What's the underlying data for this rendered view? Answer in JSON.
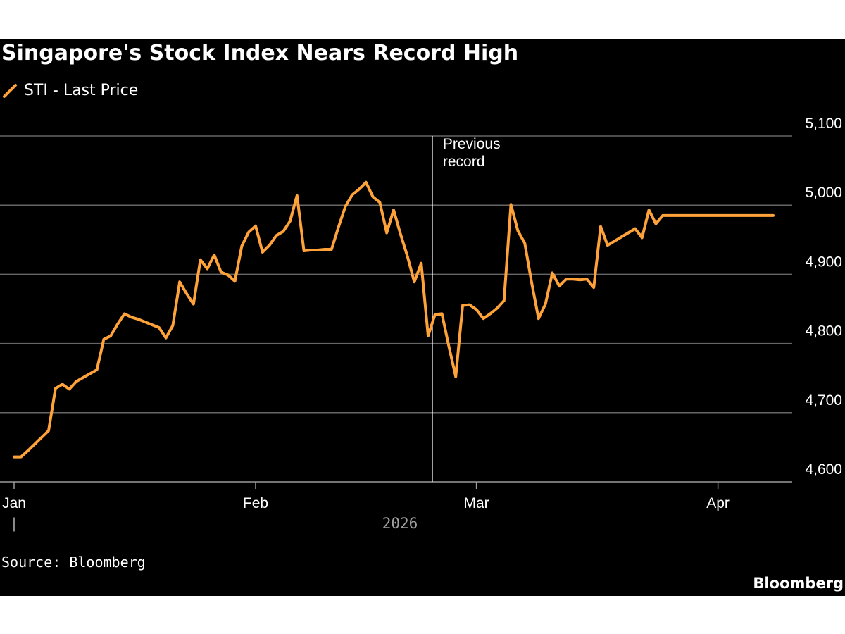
{
  "colors": {
    "background": "#000000",
    "series": "#ffa23a",
    "grid": "#666666",
    "text": "#ffffff",
    "muted": "#a0a0a0"
  },
  "source": "Source: Bloomberg",
  "brand": "Bloomberg",
  "chart_data": {
    "type": "line",
    "title": "Singapore's Stock Index Nears Record High",
    "legend": [
      "STI - Last Price"
    ],
    "legend_placement": "top-left",
    "xlabel": "2026",
    "ylabel": "",
    "y_axis_side": "right",
    "ylim": [
      4600,
      5100
    ],
    "y_ticks": [
      4600,
      4700,
      4800,
      4900,
      5000,
      5100
    ],
    "y_tick_labels": [
      "4,600",
      "4,700",
      "4,800",
      "4,900",
      "5,000",
      "5,100"
    ],
    "x_range_days": [
      0,
      112
    ],
    "x_ticks": [
      {
        "day": 0,
        "label": "Jan"
      },
      {
        "day": 35,
        "label": "Feb"
      },
      {
        "day": 67,
        "label": "Mar"
      },
      {
        "day": 102,
        "label": "Apr"
      }
    ],
    "year_separator_label": "|",
    "grid": true,
    "annotation": {
      "day": 60.6,
      "text": [
        "Previous",
        "record"
      ]
    },
    "series": [
      {
        "name": "STI - Last Price",
        "x": [
          0,
          1,
          2,
          5,
          6,
          7,
          8,
          9,
          12,
          13,
          14,
          15,
          16,
          17,
          18,
          21,
          22,
          23,
          24,
          25,
          26,
          27,
          28,
          29,
          30,
          31,
          32,
          33,
          34,
          35,
          36,
          37,
          38,
          39,
          40,
          41,
          42,
          43,
          44,
          45,
          46,
          47,
          48,
          49,
          50,
          51,
          52,
          53,
          54,
          55,
          56,
          57,
          58,
          59,
          60,
          61,
          62,
          63,
          64,
          65,
          66,
          67,
          68,
          69,
          70,
          71,
          72,
          73,
          74,
          75,
          76,
          77,
          78,
          79,
          80,
          81,
          82,
          83,
          84,
          85,
          86,
          87,
          88,
          89,
          90,
          91,
          92,
          93,
          94,
          95,
          96,
          97,
          98,
          99,
          100,
          101,
          102,
          103,
          104,
          105,
          106,
          107,
          108,
          109,
          110
        ],
        "values": [
          4636,
          4636,
          4645,
          4674,
          4735,
          4741,
          4734,
          4745,
          4762,
          4806,
          4811,
          4828,
          4843,
          4838,
          4835,
          4823,
          4808,
          4826,
          4889,
          4872,
          4857,
          4921,
          4908,
          4928,
          4903,
          4899,
          4890,
          4941,
          4961,
          4970,
          4932,
          4942,
          4956,
          4962,
          4977,
          5014,
          4934,
          4935,
          4935,
          4936,
          4936,
          4968,
          4998,
          5015,
          5023,
          5033,
          5012,
          5004,
          4960,
          4993,
          4958,
          4926,
          4889,
          4916,
          4811,
          4842,
          4843,
          4796,
          4752,
          4855,
          4856,
          4849,
          4836,
          4843,
          4851,
          4862,
          5001,
          4963,
          4945,
          4888,
          4836,
          4857,
          4902,
          4883,
          4893,
          4893,
          4892,
          4893,
          4881,
          4969,
          4942,
          4948,
          4954,
          4960,
          4966,
          4953,
          4993,
          4973,
          4985,
          4985,
          4985,
          4985,
          4985,
          4985,
          4985,
          4985,
          4985,
          4985,
          4985,
          4985,
          4985,
          4985,
          4985,
          4985,
          4985
        ]
      }
    ]
  }
}
